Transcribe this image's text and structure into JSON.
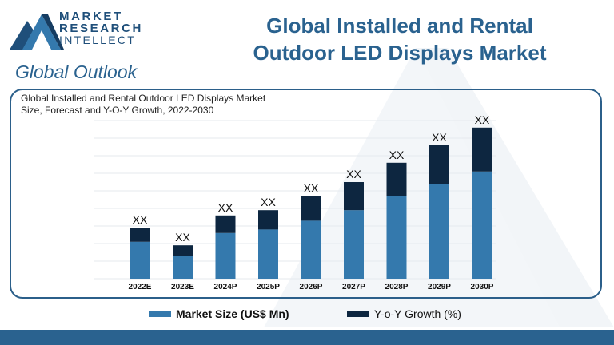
{
  "brand": {
    "line1": "MARKET",
    "line2": "RESEARCH",
    "line3": "INTELLECT",
    "logo_icon": "mountain-m-logo-icon"
  },
  "subtitle": "Global Outlook",
  "title_lines": [
    "Global Installed and Rental",
    "Outdoor LED Displays Market"
  ],
  "colors": {
    "market_size": "#3479ad",
    "yoy_growth": "#0d2640",
    "brand_blue": "#2a628f",
    "footer": "#2a628f"
  },
  "chart_data": {
    "type": "bar",
    "stacked": true,
    "title": "Global Installed and Rental Outdoor LED Displays Market Size, Forecast and Y-O-Y Growth, 2022-2030",
    "title_lines": [
      "Global Installed and Rental Outdoor LED Displays Market",
      "Size, Forecast and Y-O-Y Growth, 2022-2030"
    ],
    "xlabel": "",
    "ylabel": "",
    "ylim": [
      0,
      9
    ],
    "grid": true,
    "legend_position": "bottom",
    "categories": [
      "2022E",
      "2023E",
      "2024P",
      "2025P",
      "2026P",
      "2027P",
      "2028P",
      "2029P",
      "2030P"
    ],
    "series": [
      {
        "name": "Market Size (US$ Mn)",
        "values": [
          2.1,
          1.3,
          2.6,
          2.8,
          3.3,
          3.9,
          4.7,
          5.4,
          6.1
        ]
      },
      {
        "name": "Y-o-Y Growth (%)",
        "values": [
          0.8,
          0.6,
          1.0,
          1.1,
          1.4,
          1.6,
          1.9,
          2.2,
          2.5
        ]
      }
    ],
    "data_labels": [
      "XX",
      "XX",
      "XX",
      "XX",
      "XX",
      "XX",
      "XX",
      "XX",
      "XX"
    ]
  }
}
